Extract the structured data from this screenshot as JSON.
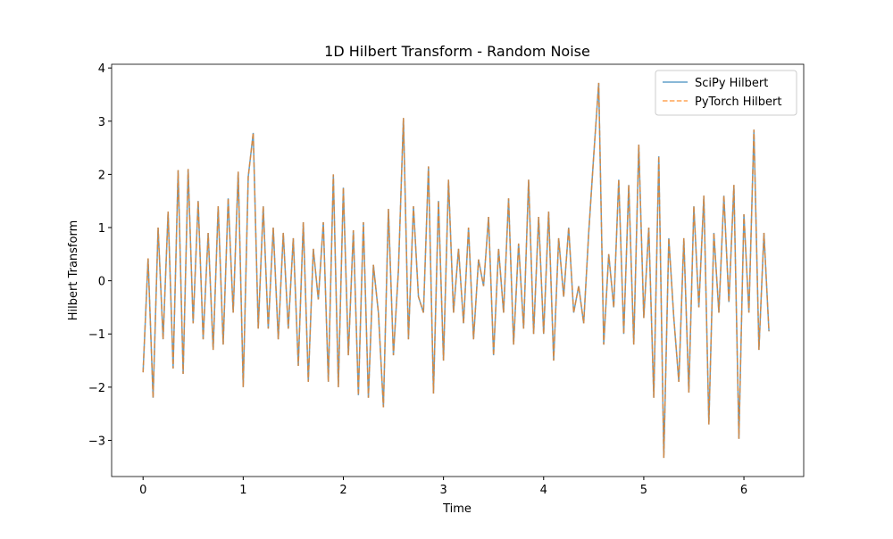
{
  "chart_data": {
    "type": "line",
    "title": "1D Hilbert Transform - Random Noise",
    "x_label": "Time",
    "y_label": "Hilbert Transform",
    "x": [
      0,
      0.05,
      0.1,
      0.15,
      0.2,
      0.25,
      0.3,
      0.35,
      0.4,
      0.45,
      0.5,
      0.55,
      0.6,
      0.65,
      0.7,
      0.75,
      0.8,
      0.85,
      0.9,
      0.95,
      1,
      1.05,
      1.1,
      1.15,
      1.2,
      1.25,
      1.3,
      1.35,
      1.4,
      1.45,
      1.5,
      1.55,
      1.6,
      1.65,
      1.7,
      1.75,
      1.8,
      1.85,
      1.9,
      1.95,
      2,
      2.05,
      2.1,
      2.15,
      2.2,
      2.25,
      2.3,
      2.35,
      2.4,
      2.45,
      2.5,
      2.55,
      2.6,
      2.65,
      2.7,
      2.75,
      2.8,
      2.85,
      2.9,
      2.95,
      3,
      3.05,
      3.1,
      3.15,
      3.2,
      3.25,
      3.3,
      3.35,
      3.4,
      3.45,
      3.5,
      3.55,
      3.6,
      3.65,
      3.7,
      3.75,
      3.8,
      3.85,
      3.9,
      3.95,
      4,
      4.05,
      4.1,
      4.15,
      4.2,
      4.25,
      4.3,
      4.35,
      4.4,
      4.45,
      4.5,
      4.55,
      4.6,
      4.65,
      4.7,
      4.75,
      4.8,
      4.85,
      4.9,
      4.95,
      5,
      5.05,
      5.1,
      5.15,
      5.2,
      5.25,
      5.3,
      5.35,
      5.4,
      5.45,
      5.5,
      5.55,
      5.6,
      5.65,
      5.7,
      5.75,
      5.8,
      5.85,
      5.9,
      5.95,
      6,
      6.05,
      6.1,
      6.15,
      6.2,
      6.25
    ],
    "series": [
      {
        "name": "SciPy Hilbert",
        "color": "#1f77b4",
        "dash": false,
        "values": [
          -1.72,
          0.42,
          -2.2,
          1.0,
          -1.1,
          1.3,
          -1.65,
          2.08,
          -1.75,
          2.1,
          -0.8,
          1.5,
          -1.1,
          0.9,
          -1.3,
          1.4,
          -1.2,
          1.55,
          -0.6,
          2.05,
          -2.0,
          1.95,
          2.78,
          -0.9,
          1.4,
          -0.9,
          1.0,
          -1.1,
          0.9,
          -0.9,
          0.8,
          -1.6,
          1.1,
          -1.9,
          0.6,
          -0.35,
          1.1,
          -1.9,
          2.0,
          -2.0,
          1.75,
          -1.4,
          0.95,
          -2.15,
          1.1,
          -2.2,
          0.3,
          -0.6,
          -2.38,
          1.35,
          -1.4,
          0.2,
          3.06,
          -1.1,
          1.4,
          -0.3,
          -0.6,
          2.15,
          -2.12,
          1.5,
          -1.5,
          1.9,
          -0.6,
          0.6,
          -0.8,
          1.0,
          -1.1,
          0.4,
          -0.1,
          1.2,
          -1.4,
          0.6,
          -0.6,
          1.55,
          -1.2,
          0.7,
          -0.9,
          1.9,
          -1.0,
          1.2,
          -1.0,
          1.3,
          -1.5,
          0.8,
          -0.3,
          1.0,
          -0.6,
          -0.1,
          -0.8,
          0.9,
          2.35,
          3.72,
          -1.2,
          0.5,
          -0.5,
          1.9,
          -1.0,
          1.8,
          -1.2,
          2.56,
          -0.7,
          1.0,
          -2.2,
          2.34,
          -3.33,
          0.8,
          -0.7,
          -1.9,
          0.8,
          -2.1,
          1.4,
          -0.5,
          1.6,
          -2.7,
          0.9,
          -0.6,
          1.6,
          -0.4,
          1.8,
          -2.97,
          1.25,
          -0.6,
          2.84,
          -1.3,
          0.9,
          -0.95
        ]
      },
      {
        "name": "PyTorch Hilbert",
        "color": "#ff7f0e",
        "dash": true,
        "values": [
          -1.72,
          0.42,
          -2.2,
          1.0,
          -1.1,
          1.3,
          -1.65,
          2.08,
          -1.75,
          2.1,
          -0.8,
          1.5,
          -1.1,
          0.9,
          -1.3,
          1.4,
          -1.2,
          1.55,
          -0.6,
          2.05,
          -2.0,
          1.95,
          2.78,
          -0.9,
          1.4,
          -0.9,
          1.0,
          -1.1,
          0.9,
          -0.9,
          0.8,
          -1.6,
          1.1,
          -1.9,
          0.6,
          -0.35,
          1.1,
          -1.9,
          2.0,
          -2.0,
          1.75,
          -1.4,
          0.95,
          -2.15,
          1.1,
          -2.2,
          0.3,
          -0.6,
          -2.38,
          1.35,
          -1.4,
          0.2,
          3.06,
          -1.1,
          1.4,
          -0.3,
          -0.6,
          2.15,
          -2.12,
          1.5,
          -1.5,
          1.9,
          -0.6,
          0.6,
          -0.8,
          1.0,
          -1.1,
          0.4,
          -0.1,
          1.2,
          -1.4,
          0.6,
          -0.6,
          1.55,
          -1.2,
          0.7,
          -0.9,
          1.9,
          -1.0,
          1.2,
          -1.0,
          1.3,
          -1.5,
          0.8,
          -0.3,
          1.0,
          -0.6,
          -0.1,
          -0.8,
          0.9,
          2.35,
          3.72,
          -1.2,
          0.5,
          -0.5,
          1.9,
          -1.0,
          1.8,
          -1.2,
          2.56,
          -0.7,
          1.0,
          -2.2,
          2.34,
          -3.33,
          0.8,
          -0.7,
          -1.9,
          0.8,
          -2.1,
          1.4,
          -0.5,
          1.6,
          -2.7,
          0.9,
          -0.6,
          1.6,
          -0.4,
          1.8,
          -2.97,
          1.25,
          -0.6,
          2.84,
          -1.3,
          0.9,
          -0.95
        ]
      }
    ],
    "xlim": [
      -0.314,
      6.597
    ],
    "xticks": [
      0,
      1,
      2,
      3,
      4,
      5,
      6
    ],
    "ylim": [
      -3.68,
      4.07
    ],
    "yticks": [
      {
        "value": -3,
        "label": "−3"
      },
      {
        "value": -2,
        "label": "−2"
      },
      {
        "value": -1,
        "label": "−1"
      },
      0,
      1,
      2,
      3,
      4
    ],
    "grid": false,
    "legend": "upper right"
  }
}
